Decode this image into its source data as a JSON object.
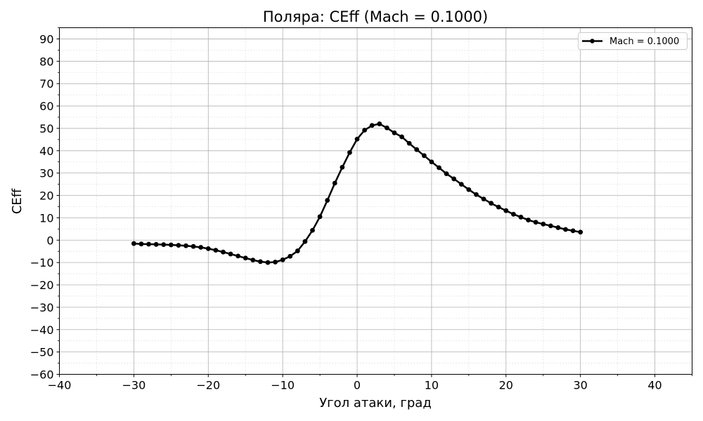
{
  "chart_data": {
    "type": "line",
    "title": "Поляра: CEff (Mach = 0.1000)",
    "xlabel": "Угол атаки, град",
    "ylabel": "CEff",
    "xlim": [
      -40,
      45
    ],
    "ylim": [
      -60,
      95
    ],
    "x_ticks": [
      -40,
      -30,
      -20,
      -10,
      0,
      10,
      20,
      30,
      40
    ],
    "y_ticks": [
      -60,
      -50,
      -40,
      -30,
      -20,
      -10,
      0,
      10,
      20,
      30,
      40,
      50,
      60,
      70,
      80,
      90
    ],
    "grid": true,
    "minor_grid": true,
    "legend_position": "top-right",
    "series": [
      {
        "name": "Mach = 0.1000",
        "color": "#000000",
        "marker": "circle",
        "x": [
          -30,
          -29,
          -28,
          -27,
          -26,
          -25,
          -24,
          -23,
          -22,
          -21,
          -20,
          -19,
          -18,
          -17,
          -16,
          -15,
          -14,
          -13,
          -12,
          -11,
          -10,
          -9,
          -8,
          -7,
          -6,
          -5,
          -4,
          -3,
          -2,
          -1,
          0,
          1,
          2,
          3,
          4,
          5,
          6,
          7,
          8,
          9,
          10,
          11,
          12,
          13,
          14,
          15,
          16,
          17,
          18,
          19,
          20,
          21,
          22,
          23,
          24,
          25,
          26,
          27,
          28,
          29,
          30
        ],
        "y": [
          -1.5,
          -1.7,
          -1.8,
          -1.9,
          -2.0,
          -2.1,
          -2.3,
          -2.5,
          -2.8,
          -3.2,
          -3.8,
          -4.5,
          -5.3,
          -6.2,
          -7.1,
          -8.0,
          -8.9,
          -9.6,
          -10.0,
          -9.8,
          -8.8,
          -7.2,
          -4.8,
          -0.6,
          4.4,
          10.5,
          17.8,
          25.5,
          32.6,
          39.2,
          45.2,
          49.2,
          51.3,
          52.0,
          50.2,
          48.0,
          46.2,
          43.3,
          40.5,
          37.8,
          35.0,
          32.4,
          29.7,
          27.4,
          25.0,
          22.6,
          20.4,
          18.4,
          16.5,
          14.8,
          13.2,
          11.6,
          10.3,
          9.0,
          8.0,
          7.2,
          6.4,
          5.6,
          4.8,
          4.2,
          3.6
        ]
      }
    ]
  }
}
